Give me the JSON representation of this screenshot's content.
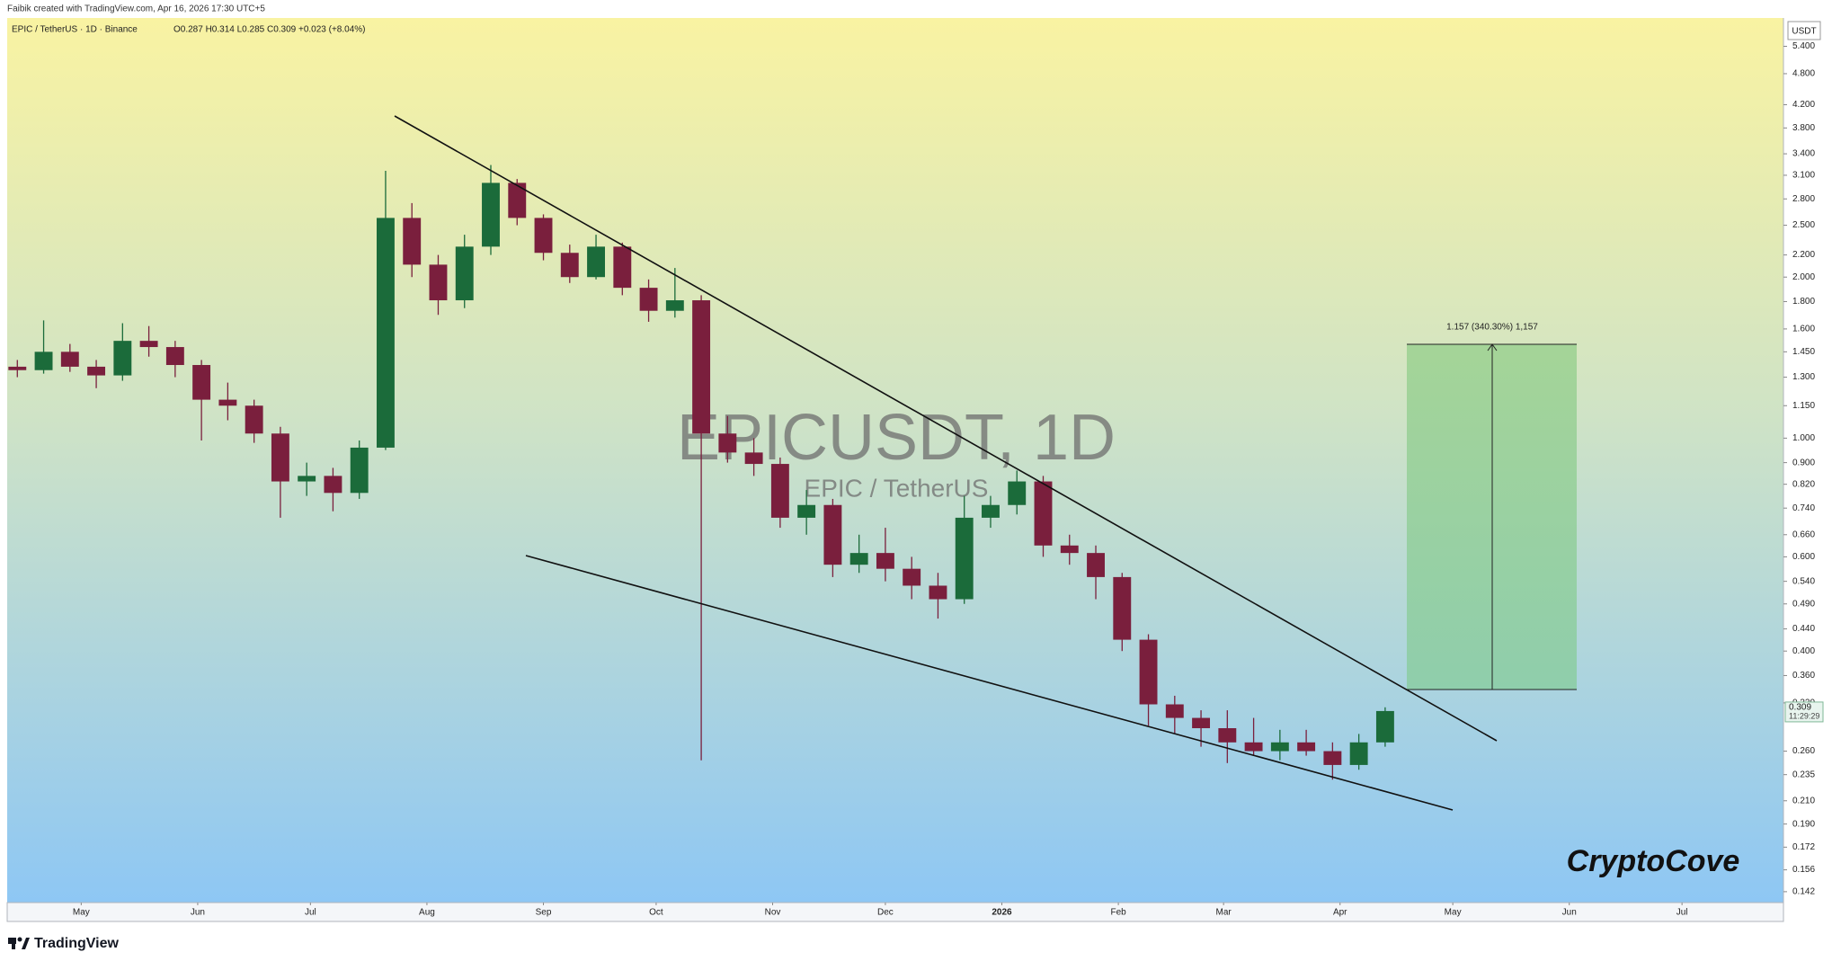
{
  "header": {
    "credit": "Faibik created with TradingView.com, Apr 16, 2026 17:30 UTC+5",
    "symbol": "EPIC / TetherUS · 1D · Binance",
    "ohlc": "O0.287 H0.314 L0.285 C0.309 +0.023 (+8.04%)"
  },
  "price_label": {
    "price": "0.309",
    "countdown": "11:29:29"
  },
  "measure_label": "1.157 (340.30%) 1,157",
  "signature": "CryptoCove",
  "brand": "TradingView",
  "chart_data": {
    "type": "candlestick",
    "title": "EPICUSDT, 1D",
    "subtitle": "EPIC / TetherUS",
    "y_axis_label": "USDT",
    "log_scale": true,
    "grid": false,
    "up_color": "#1b6b3a",
    "down_color": "#7a1f3d",
    "x": [
      -17,
      -10,
      -3,
      4,
      11,
      18,
      25,
      32,
      39,
      46,
      53,
      60,
      67,
      74,
      81,
      88,
      95,
      102,
      109,
      116,
      123,
      130,
      137,
      144,
      151,
      158,
      165,
      172,
      179,
      186,
      193,
      200,
      207,
      214,
      221,
      228,
      235,
      242,
      249,
      256,
      263,
      270,
      277,
      284,
      291,
      298,
      305,
      312,
      319,
      326,
      333,
      340,
      347
    ],
    "open": [
      1.36,
      1.34,
      1.45,
      1.36,
      1.31,
      1.52,
      1.48,
      1.37,
      1.18,
      1.15,
      1.02,
      0.83,
      0.85,
      0.79,
      0.96,
      2.58,
      2.11,
      1.81,
      2.28,
      3.0,
      2.58,
      2.22,
      2.0,
      2.28,
      1.91,
      1.73,
      1.81,
      1.02,
      0.94,
      0.895,
      0.71,
      0.75,
      0.58,
      0.61,
      0.57,
      0.53,
      0.5,
      0.71,
      0.75,
      0.83,
      0.63,
      0.61,
      0.55,
      0.42,
      0.318,
      0.3,
      0.287,
      0.27,
      0.26,
      0.27,
      0.26,
      0.245,
      0.27
    ],
    "high": [
      1.4,
      1.66,
      1.5,
      1.4,
      1.64,
      1.62,
      1.52,
      1.4,
      1.27,
      1.18,
      1.05,
      0.9,
      0.88,
      0.99,
      3.16,
      2.75,
      2.2,
      2.4,
      3.24,
      3.05,
      2.62,
      2.3,
      2.4,
      2.32,
      1.98,
      2.08,
      1.85,
      1.1,
      1.0,
      0.92,
      0.8,
      0.77,
      0.66,
      0.68,
      0.6,
      0.56,
      0.78,
      0.78,
      0.87,
      0.85,
      0.66,
      0.63,
      0.56,
      0.43,
      0.33,
      0.31,
      0.31,
      0.3,
      0.285,
      0.285,
      0.27,
      0.28,
      0.314
    ],
    "low": [
      1.3,
      1.32,
      1.33,
      1.24,
      1.28,
      1.42,
      1.3,
      0.99,
      1.08,
      0.98,
      0.71,
      0.78,
      0.73,
      0.77,
      0.95,
      2.0,
      1.7,
      1.75,
      2.2,
      2.5,
      2.15,
      1.95,
      1.98,
      1.85,
      1.65,
      1.68,
      0.25,
      0.9,
      0.85,
      0.68,
      0.66,
      0.55,
      0.56,
      0.54,
      0.5,
      0.46,
      0.49,
      0.68,
      0.72,
      0.6,
      0.58,
      0.5,
      0.4,
      0.29,
      0.28,
      0.265,
      0.247,
      0.255,
      0.25,
      0.255,
      0.23,
      0.24,
      0.265
    ],
    "close": [
      1.34,
      1.45,
      1.36,
      1.31,
      1.52,
      1.48,
      1.37,
      1.18,
      1.15,
      1.02,
      0.83,
      0.85,
      0.79,
      0.96,
      2.58,
      2.11,
      1.81,
      2.28,
      3.0,
      2.58,
      2.22,
      2.0,
      2.28,
      1.91,
      1.73,
      1.81,
      1.02,
      0.94,
      0.895,
      0.71,
      0.75,
      0.58,
      0.61,
      0.57,
      0.53,
      0.5,
      0.71,
      0.75,
      0.83,
      0.63,
      0.61,
      0.55,
      0.42,
      0.318,
      0.3,
      0.287,
      0.27,
      0.26,
      0.27,
      0.26,
      0.245,
      0.27,
      0.309
    ],
    "xlim": [
      -19.7,
      453
    ],
    "xticks": [
      {
        "value": 0,
        "label": "May"
      },
      {
        "value": 31,
        "label": "Jun"
      },
      {
        "value": 61,
        "label": "Jul"
      },
      {
        "value": 92,
        "label": "Aug"
      },
      {
        "value": 123,
        "label": "Sep"
      },
      {
        "value": 153,
        "label": "Oct"
      },
      {
        "value": 184,
        "label": "Nov"
      },
      {
        "value": 214,
        "label": "Dec"
      },
      {
        "value": 245,
        "label": "2026"
      },
      {
        "value": 276,
        "label": "Feb"
      },
      {
        "value": 304,
        "label": "Mar"
      },
      {
        "value": 335,
        "label": "Apr"
      },
      {
        "value": 365,
        "label": "May"
      },
      {
        "value": 396,
        "label": "Jun"
      },
      {
        "value": 426,
        "label": "Jul"
      }
    ],
    "ylim": [
      0.1355,
      6.1
    ],
    "yticks": [
      {
        "value": 5.4,
        "label": "5.400"
      },
      {
        "value": 4.8,
        "label": "4.800"
      },
      {
        "value": 4.2,
        "label": "4.200"
      },
      {
        "value": 3.8,
        "label": "3.800"
      },
      {
        "value": 3.4,
        "label": "3.400"
      },
      {
        "value": 3.1,
        "label": "3.100"
      },
      {
        "value": 2.8,
        "label": "2.800"
      },
      {
        "value": 2.5,
        "label": "2.500"
      },
      {
        "value": 2.2,
        "label": "2.200"
      },
      {
        "value": 2.0,
        "label": "2.000"
      },
      {
        "value": 1.8,
        "label": "1.800"
      },
      {
        "value": 1.6,
        "label": "1.600"
      },
      {
        "value": 1.45,
        "label": "1.450"
      },
      {
        "value": 1.3,
        "label": "1.300"
      },
      {
        "value": 1.15,
        "label": "1.150"
      },
      {
        "value": 1.0,
        "label": "1.000"
      },
      {
        "value": 0.9,
        "label": "0.900"
      },
      {
        "value": 0.82,
        "label": "0.820"
      },
      {
        "value": 0.74,
        "label": "0.740"
      },
      {
        "value": 0.66,
        "label": "0.660"
      },
      {
        "value": 0.6,
        "label": "0.600"
      },
      {
        "value": 0.54,
        "label": "0.540"
      },
      {
        "value": 0.49,
        "label": "0.490"
      },
      {
        "value": 0.44,
        "label": "0.440"
      },
      {
        "value": 0.4,
        "label": "0.400"
      },
      {
        "value": 0.36,
        "label": "0.360"
      },
      {
        "value": 0.32,
        "label": "0.320"
      },
      {
        "value": 0.26,
        "label": "0.260"
      },
      0.235,
      {
        "value": 0.21,
        "label": "0.210"
      },
      {
        "value": 0.19,
        "label": "0.190"
      },
      0.172,
      0.156,
      0.142
    ]
  }
}
